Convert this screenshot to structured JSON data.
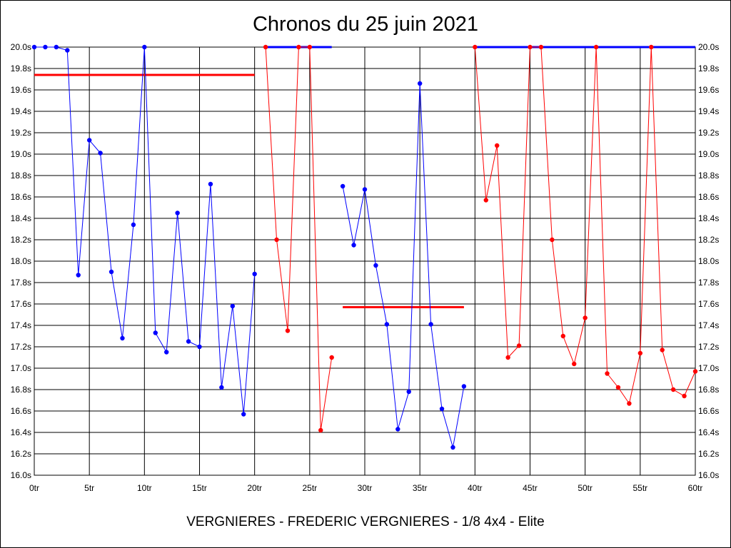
{
  "chart_data": {
    "type": "line",
    "title": "Chronos du 25 juin 2021",
    "subtitle": "VERGNIERES - FREDERIC VERGNIERES - 1/8 4x4 - Elite",
    "x_ticks": [
      "0tr",
      "5tr",
      "10tr",
      "15tr",
      "20tr",
      "25tr",
      "30tr",
      "35tr",
      "40tr",
      "45tr",
      "50tr",
      "55tr",
      "60tr"
    ],
    "y_ticks": [
      "16.0s",
      "16.2s",
      "16.4s",
      "16.6s",
      "16.8s",
      "17.0s",
      "17.2s",
      "17.4s",
      "17.6s",
      "17.8s",
      "18.0s",
      "18.2s",
      "18.4s",
      "18.6s",
      "18.8s",
      "19.0s",
      "19.2s",
      "19.4s",
      "19.6s",
      "19.8s",
      "20.0s"
    ],
    "xlim": [
      0,
      60
    ],
    "ylim": [
      16.0,
      20.0
    ],
    "grid": true,
    "colors": {
      "blue": "#0000ff",
      "red": "#ff0000"
    },
    "series": [
      {
        "color": "#0000ff",
        "points": [
          [
            0,
            20.0
          ],
          [
            1,
            20.0
          ],
          [
            2,
            20.0
          ],
          [
            3,
            19.97
          ],
          [
            4,
            17.87
          ],
          [
            5,
            19.13
          ],
          [
            6,
            19.01
          ],
          [
            7,
            17.9
          ],
          [
            8,
            17.28
          ],
          [
            9,
            18.34
          ],
          [
            10,
            20.0
          ],
          [
            11,
            17.33
          ],
          [
            12,
            17.15
          ],
          [
            13,
            18.45
          ],
          [
            14,
            17.25
          ],
          [
            15,
            17.2
          ],
          [
            16,
            18.72
          ],
          [
            17,
            16.82
          ],
          [
            18,
            17.58
          ],
          [
            19,
            16.57
          ],
          [
            20,
            17.88
          ]
        ]
      },
      {
        "color": "#ff0000",
        "points": [
          [
            21,
            20.0
          ],
          [
            22,
            18.2
          ],
          [
            23,
            17.35
          ],
          [
            24,
            20.0
          ],
          [
            25,
            20.0
          ],
          [
            26,
            16.42
          ],
          [
            27,
            17.1
          ]
        ]
      },
      {
        "color": "#0000ff",
        "points": [
          [
            28,
            18.7
          ],
          [
            29,
            18.15
          ],
          [
            30,
            18.67
          ],
          [
            31,
            17.96
          ],
          [
            32,
            17.41
          ],
          [
            33,
            16.43
          ],
          [
            34,
            16.78
          ],
          [
            35,
            19.66
          ],
          [
            36,
            17.41
          ],
          [
            37,
            16.62
          ],
          [
            38,
            16.26
          ],
          [
            39,
            16.83
          ]
        ]
      },
      {
        "color": "#ff0000",
        "points": [
          [
            40,
            20.0
          ],
          [
            41,
            18.57
          ],
          [
            42,
            19.08
          ],
          [
            43,
            17.1
          ],
          [
            44,
            17.21
          ],
          [
            45,
            20.0
          ],
          [
            46,
            20.0
          ],
          [
            47,
            18.2
          ],
          [
            48,
            17.3
          ],
          [
            49,
            17.04
          ],
          [
            50,
            17.47
          ],
          [
            51,
            20.0
          ],
          [
            52,
            16.95
          ],
          [
            53,
            16.82
          ],
          [
            54,
            16.67
          ],
          [
            55,
            17.14
          ],
          [
            56,
            20.0
          ],
          [
            57,
            17.17
          ],
          [
            58,
            16.8
          ],
          [
            59,
            16.74
          ],
          [
            60,
            16.97
          ]
        ]
      }
    ],
    "reference_lines": [
      {
        "color": "#ff0000",
        "x": [
          0,
          20
        ],
        "y": 19.74
      },
      {
        "color": "#0000ff",
        "x": [
          21,
          27
        ],
        "y": 20.0
      },
      {
        "color": "#ff0000",
        "x": [
          28,
          39
        ],
        "y": 17.57
      },
      {
        "color": "#0000ff",
        "x": [
          40,
          60
        ],
        "y": 20.0
      }
    ]
  }
}
